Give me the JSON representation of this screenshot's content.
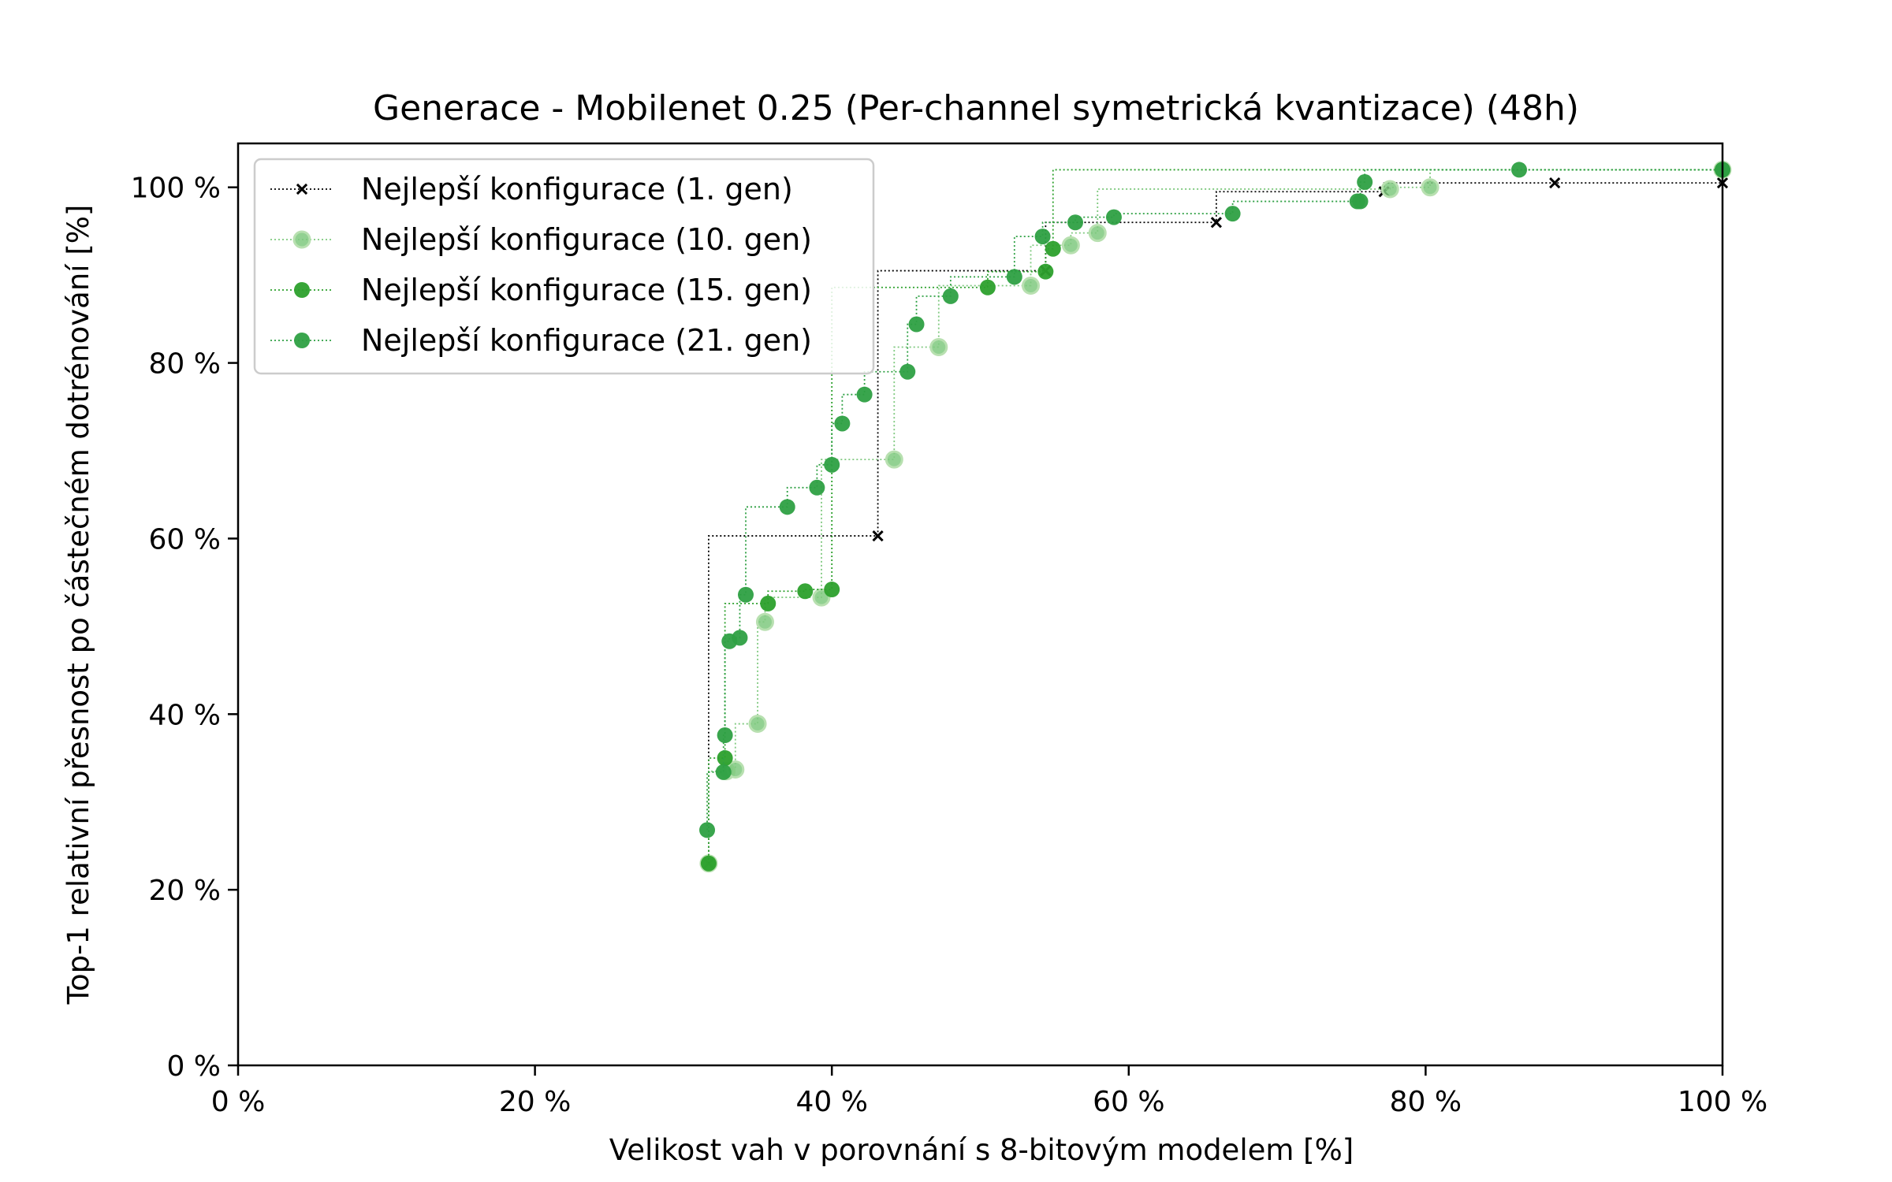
{
  "chart_data": {
    "type": "line",
    "title": "Generace - Mobilenet 0.25 (Per-channel symetrická kvantizace) (48h)",
    "xlabel": "Velikost vah v porovnání s 8-bitovým modelem [%]",
    "ylabel": "Top-1 relativní přesnost po částečném dotrénování [%]",
    "xlim": [
      0,
      100
    ],
    "ylim": [
      0,
      105
    ],
    "xticks": [
      0,
      20,
      40,
      60,
      80,
      100
    ],
    "xtick_labels": [
      "0 %",
      "20 %",
      "40 %",
      "60 %",
      "80 %",
      "100 %"
    ],
    "yticks": [
      0,
      20,
      40,
      60,
      80,
      100
    ],
    "ytick_labels": [
      "0 %",
      "20 %",
      "40 %",
      "60 %",
      "80 %",
      "100 %"
    ],
    "legend_position": "top-left",
    "step": true,
    "series": [
      {
        "name": "Nejlepší konfigurace (1. gen)",
        "color": "#000000",
        "marker": "x",
        "points": [
          [
            31.7,
            23.0
          ],
          [
            43.1,
            60.3
          ],
          [
            54.4,
            90.5
          ],
          [
            65.9,
            96.0
          ],
          [
            77.2,
            99.5
          ],
          [
            88.7,
            100.5
          ],
          [
            100,
            100.5
          ]
        ]
      },
      {
        "name": "Nejlepší konfigurace (10. gen)",
        "color": "#7fc97f",
        "marker": "circle-light",
        "points": [
          [
            31.7,
            23.0
          ],
          [
            32.9,
            33.5
          ],
          [
            33.5,
            33.7
          ],
          [
            35.0,
            38.9
          ],
          [
            35.5,
            50.5
          ],
          [
            39.3,
            53.3
          ],
          [
            44.2,
            69.0
          ],
          [
            47.2,
            81.8
          ],
          [
            53.4,
            88.8
          ],
          [
            56.1,
            93.4
          ],
          [
            57.9,
            94.8
          ],
          [
            77.6,
            99.8
          ],
          [
            80.3,
            100.0
          ],
          [
            100,
            102.0
          ]
        ]
      },
      {
        "name": "Nejlepší konfigurace (15. gen)",
        "color": "#2ca02c",
        "marker": "circle",
        "points": [
          [
            31.7,
            23.0
          ],
          [
            32.8,
            35.0
          ],
          [
            35.7,
            52.6
          ],
          [
            38.2,
            54.0
          ],
          [
            40.0,
            54.2
          ],
          [
            50.5,
            88.6
          ],
          [
            54.4,
            90.4
          ],
          [
            54.9,
            93.0
          ],
          [
            100,
            102.0
          ]
        ]
      },
      {
        "name": "Nejlepší konfigurace (21. gen)",
        "color": "#2ea043",
        "marker": "circle",
        "points": [
          [
            31.6,
            26.8
          ],
          [
            32.7,
            33.4
          ],
          [
            32.8,
            37.6
          ],
          [
            33.1,
            48.3
          ],
          [
            33.8,
            48.7
          ],
          [
            34.2,
            53.6
          ],
          [
            37.0,
            63.6
          ],
          [
            39.0,
            65.8
          ],
          [
            40.0,
            68.4
          ],
          [
            40.7,
            73.1
          ],
          [
            42.2,
            76.4
          ],
          [
            45.1,
            79.0
          ],
          [
            45.7,
            84.4
          ],
          [
            48.0,
            87.6
          ],
          [
            52.3,
            89.8
          ],
          [
            54.2,
            94.4
          ],
          [
            56.4,
            96.0
          ],
          [
            59.0,
            96.6
          ],
          [
            67.0,
            97.0
          ],
          [
            75.4,
            98.4
          ],
          [
            75.6,
            98.4
          ],
          [
            75.9,
            100.6
          ],
          [
            86.3,
            102.0
          ],
          [
            100,
            102.0
          ]
        ]
      }
    ]
  }
}
